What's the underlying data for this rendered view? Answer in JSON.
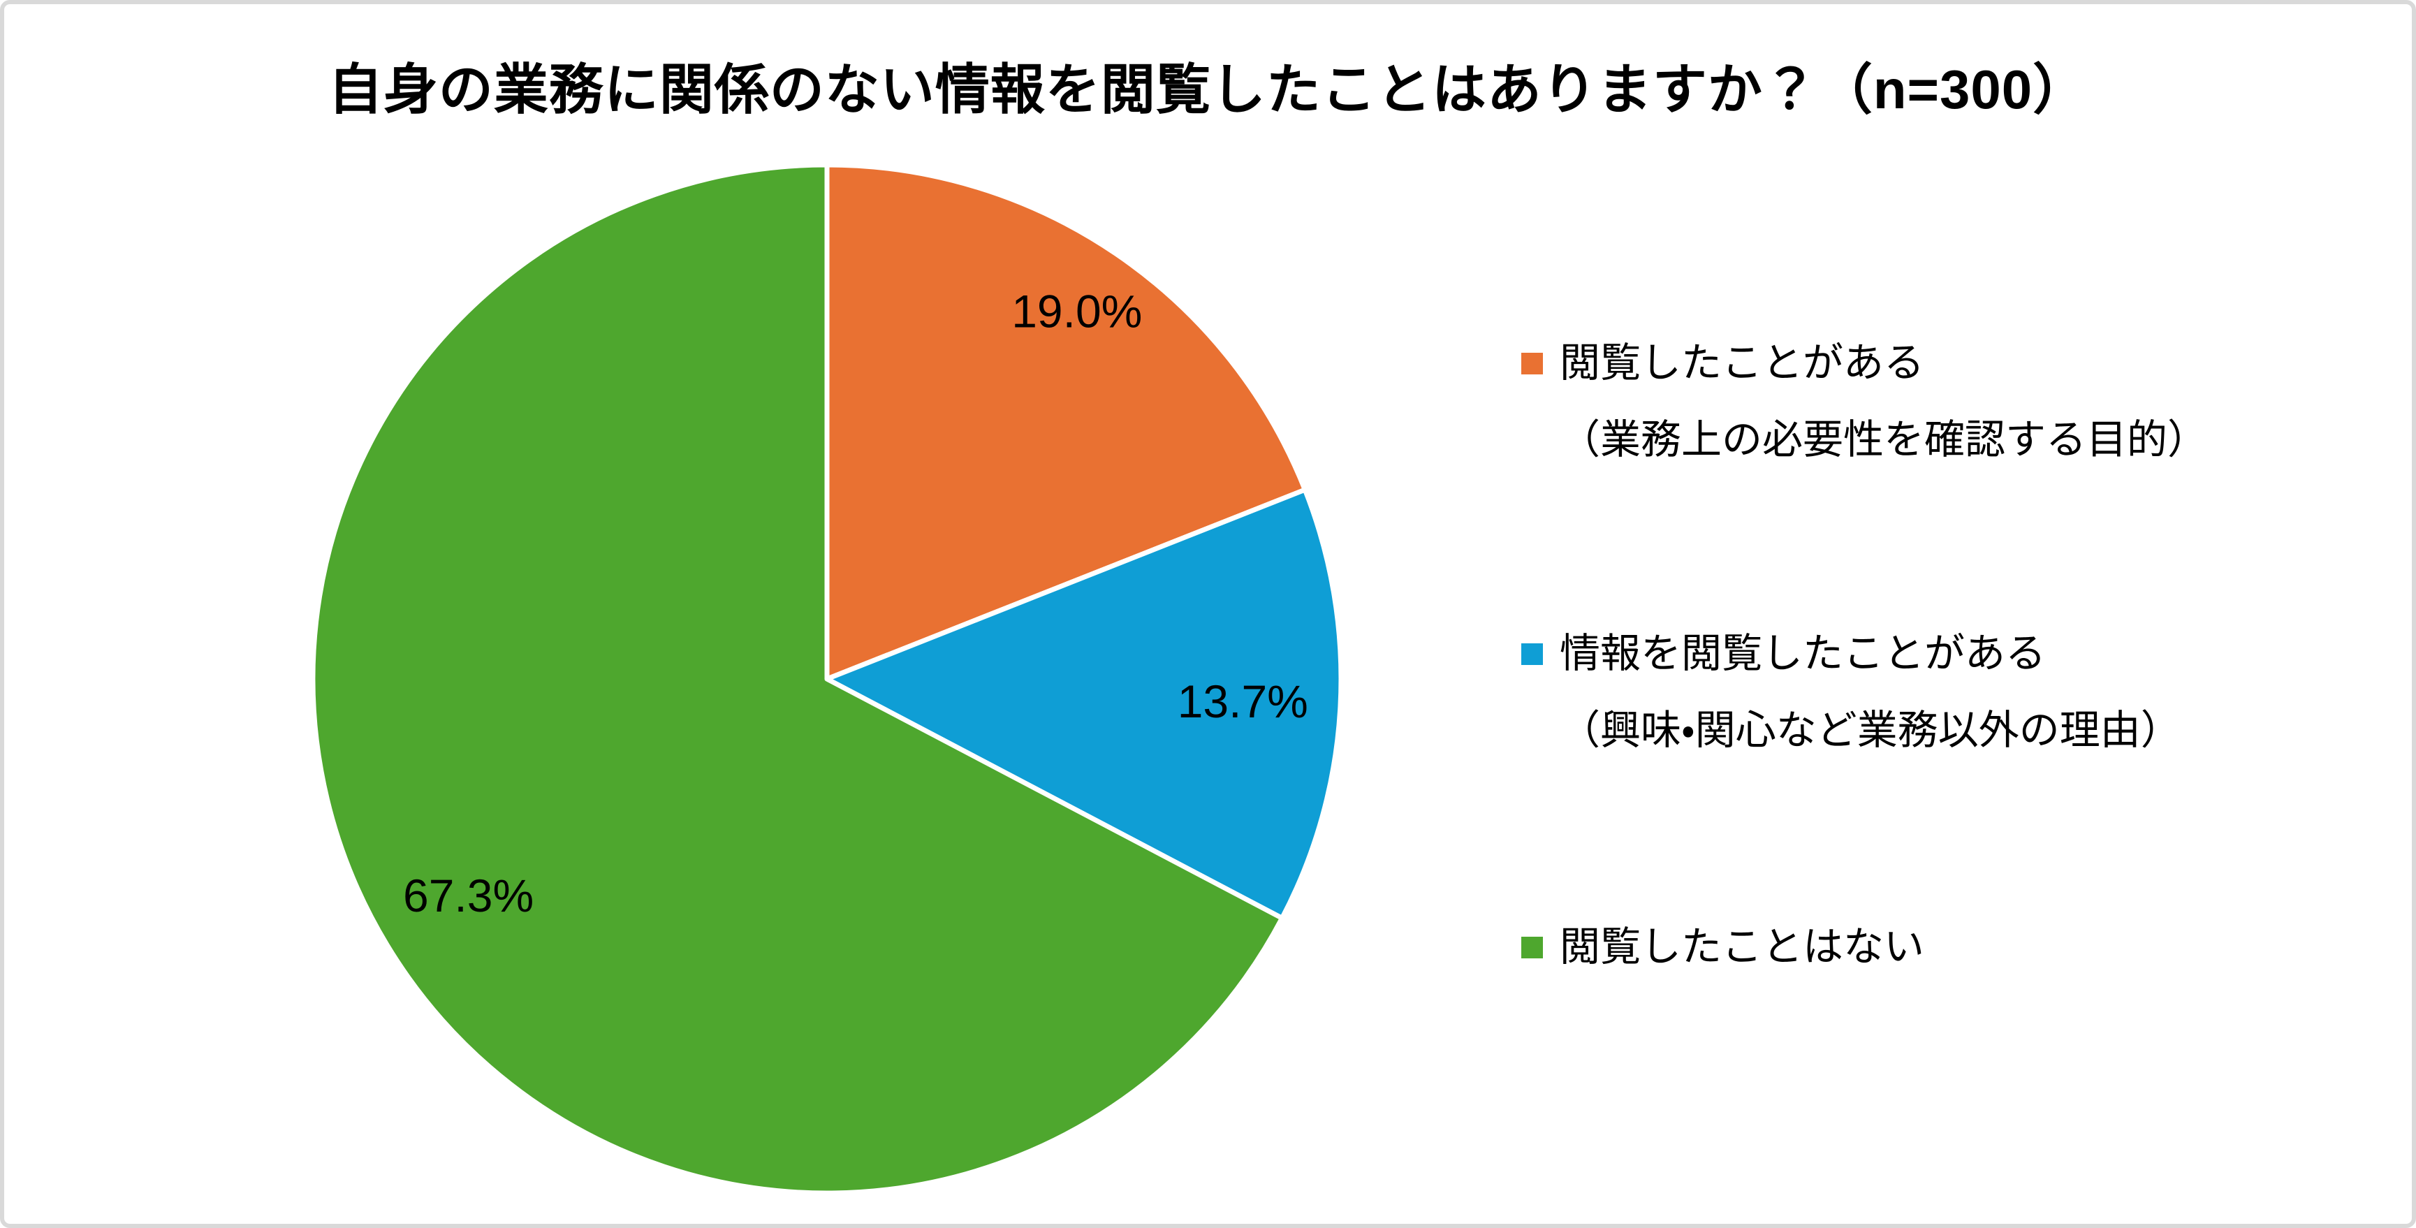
{
  "frame": {
    "background": "#FFFFFF",
    "border_color": "#D9D9D9"
  },
  "text_color": "#000000",
  "chart_data": {
    "type": "pie",
    "title": "自身の業務に関係のない情報を閲覧したことはありますか？（n=300）",
    "sample_size": 300,
    "start_angle_deg": 0,
    "direction": "clockwise",
    "slice_border_color": "#FFFFFF",
    "data_label_style": "inside, percent with 1 decimal",
    "legend_position": "right",
    "slices": [
      {
        "label": "閲覧したことがある（業務上の必要性を確認する目的）",
        "value": 19.0,
        "display_value": "19.0%",
        "color": "#E97132"
      },
      {
        "label": "情報を閲覧したことがある（興味・関心など業務以外の理由）",
        "value": 13.7,
        "display_value": "13.7%",
        "color": "#0F9ED5"
      },
      {
        "label": "閲覧したことはない",
        "value": 67.3,
        "display_value": "67.3%",
        "color": "#4EA72E"
      }
    ]
  },
  "legend": {
    "items": [
      {
        "line1": "閲覧したことがある",
        "line2": "（業務上の必要性を確認する目的）",
        "color": "#E97132"
      },
      {
        "line1": "情報を閲覧したことがある",
        "line2": "（興味・関心など業務以外の理由）",
        "color": "#0F9ED5"
      },
      {
        "line1": "閲覧したことはない",
        "line2": "",
        "color": "#4EA72E"
      }
    ]
  }
}
